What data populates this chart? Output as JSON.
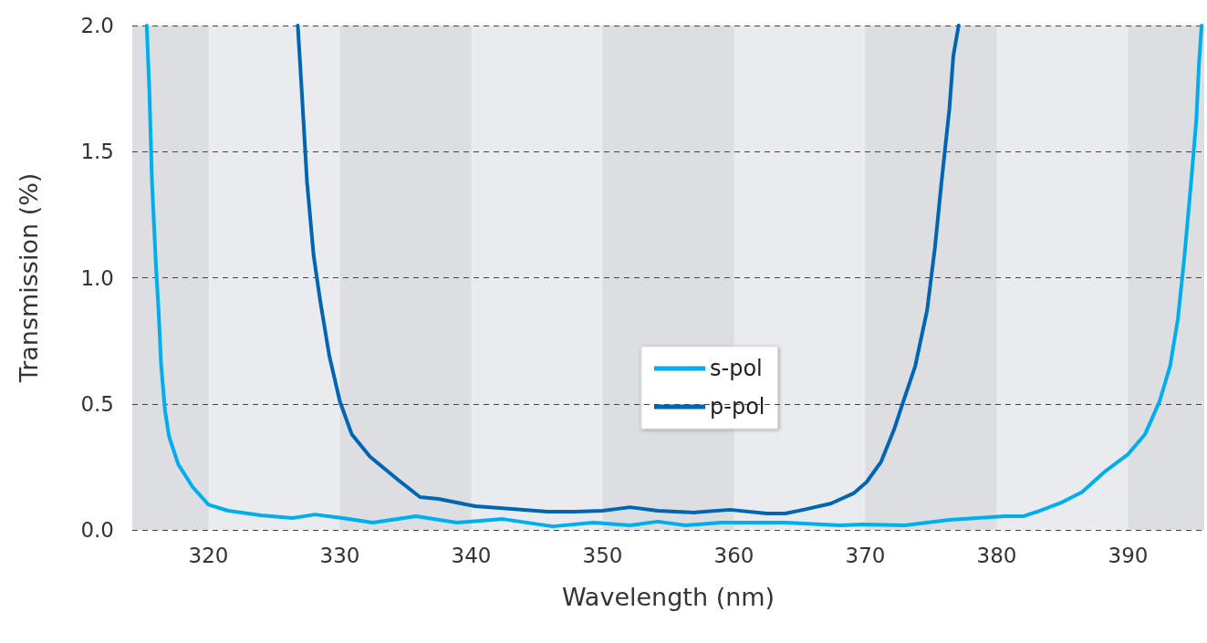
{
  "chart_data": {
    "type": "line",
    "xlabel": "Wavelength (nm)",
    "ylabel": "Transmission (%)",
    "xlim": [
      314.2,
      395.8
    ],
    "xticks": [
      320,
      330,
      340,
      350,
      360,
      370,
      380,
      390
    ],
    "ylim": [
      0,
      2
    ],
    "yticks": [
      {
        "value": 0,
        "label": "0.0"
      },
      0.5,
      {
        "value": 1,
        "label": "1.0"
      },
      1.5,
      {
        "value": 2,
        "label": "2.0"
      }
    ],
    "grid": "y",
    "legend": "center",
    "marker": "none",
    "line_style": "solid",
    "bands": [
      {
        "axis": "x",
        "from": 314.2,
        "to": 320,
        "color": "#dcdee1"
      },
      {
        "axis": "x",
        "from": 330,
        "to": 340,
        "color": "#dcdee1"
      },
      {
        "axis": "x",
        "from": 350,
        "to": 360,
        "color": "#dcdee1"
      },
      {
        "axis": "x",
        "from": 370,
        "to": 380,
        "color": "#dcdee1"
      },
      {
        "axis": "x",
        "from": 390,
        "to": 395.8,
        "color": "#dcdee1"
      }
    ],
    "series": [
      {
        "name": "s-pol",
        "color": "#00aeef",
        "x": [
          315.3,
          315.5,
          315.7,
          316.0,
          316.2,
          316.4,
          316.7,
          317.0,
          317.7,
          318.8,
          320,
          321.5,
          324,
          326.4,
          328.1,
          330.2,
          332.5,
          335.8,
          338.9,
          342.4,
          346.2,
          349.3,
          352.1,
          354.2,
          356.3,
          359,
          363.9,
          368.1,
          369.8,
          373,
          376.4,
          380.6,
          382,
          383.3,
          385,
          386.5,
          388.2,
          390,
          391.3,
          392.4,
          393.2,
          393.8,
          394.3,
          394.8,
          395.2,
          395.4,
          395.6
        ],
        "values": [
          2.0,
          1.74,
          1.38,
          1.05,
          0.87,
          0.65,
          0.47,
          0.37,
          0.26,
          0.17,
          0.1,
          0.076,
          0.058,
          0.047,
          0.061,
          0.047,
          0.029,
          0.054,
          0.029,
          0.043,
          0.014,
          0.029,
          0.018,
          0.033,
          0.018,
          0.029,
          0.029,
          0.018,
          0.022,
          0.018,
          0.04,
          0.054,
          0.054,
          0.076,
          0.11,
          0.15,
          0.23,
          0.3,
          0.38,
          0.51,
          0.65,
          0.84,
          1.09,
          1.38,
          1.63,
          1.85,
          2.0
        ]
      },
      {
        "name": "p-pol",
        "color": "#0066b3",
        "x": [
          326.8,
          327.1,
          327.5,
          328,
          328.5,
          329.2,
          330,
          330.9,
          332.3,
          334.4,
          336.1,
          337.5,
          340.3,
          343.1,
          345.8,
          347.9,
          350,
          352.1,
          354.2,
          357,
          359.7,
          362.5,
          363.9,
          365.3,
          367.4,
          369.1,
          370.1,
          371.2,
          372.2,
          372.9,
          373.8,
          374.7,
          375.3,
          375.8,
          376.4,
          376.7,
          377.1
        ],
        "values": [
          2.0,
          1.74,
          1.38,
          1.09,
          0.91,
          0.69,
          0.51,
          0.38,
          0.29,
          0.2,
          0.13,
          0.123,
          0.094,
          0.083,
          0.072,
          0.072,
          0.076,
          0.09,
          0.076,
          0.069,
          0.08,
          0.065,
          0.065,
          0.08,
          0.105,
          0.145,
          0.19,
          0.27,
          0.4,
          0.51,
          0.65,
          0.87,
          1.12,
          1.38,
          1.67,
          1.88,
          2.0
        ]
      }
    ]
  }
}
